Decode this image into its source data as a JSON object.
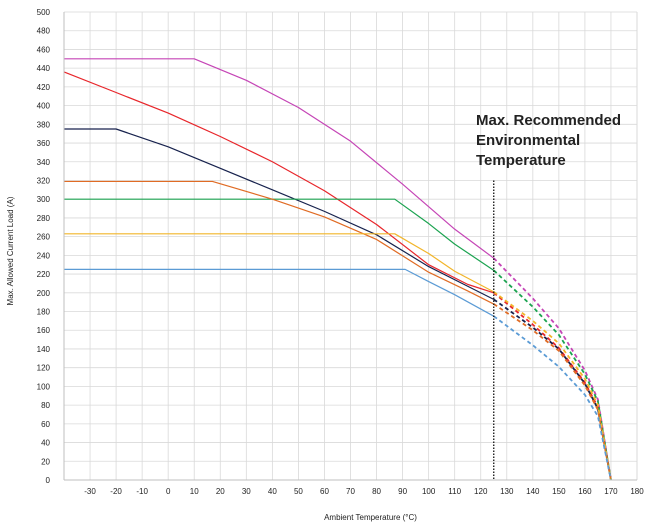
{
  "chart_data": {
    "type": "line",
    "title": "",
    "xlabel": "Ambient Temperature (°C)",
    "ylabel": "Max. Allowed Current Load (A)",
    "xlim": [
      -40,
      180
    ],
    "ylim": [
      0,
      500
    ],
    "xticks": [
      -30,
      -20,
      -10,
      0,
      10,
      20,
      30,
      40,
      50,
      60,
      70,
      80,
      90,
      100,
      110,
      120,
      130,
      140,
      150,
      160,
      170,
      180
    ],
    "yticks": [
      0,
      20,
      40,
      60,
      80,
      100,
      120,
      140,
      160,
      180,
      200,
      220,
      240,
      260,
      280,
      300,
      320,
      340,
      360,
      380,
      400,
      420,
      440,
      460,
      480,
      500
    ],
    "grid": true,
    "legend": "none",
    "solid_until_x": 125,
    "dashed_from_x": 125,
    "annotation": {
      "lines": [
        "Max. Recommended",
        "Environmental",
        "Temperature"
      ],
      "vline_x": 125,
      "vline_top_y": 320
    },
    "series": [
      {
        "color": "#c545b6",
        "values": [
          [
            -40,
            450
          ],
          [
            10,
            450
          ],
          [
            30,
            427
          ],
          [
            50,
            398
          ],
          [
            70,
            362
          ],
          [
            90,
            316
          ],
          [
            110,
            268
          ],
          [
            125,
            237
          ],
          [
            140,
            194
          ],
          [
            150,
            162
          ],
          [
            160,
            117
          ],
          [
            165,
            86
          ],
          [
            170,
            0
          ]
        ]
      },
      {
        "color": "#e8262b",
        "values": [
          [
            -40,
            436
          ],
          [
            -20,
            414
          ],
          [
            0,
            392
          ],
          [
            20,
            367
          ],
          [
            40,
            340
          ],
          [
            60,
            309
          ],
          [
            80,
            273
          ],
          [
            100,
            230
          ],
          [
            115,
            209
          ],
          [
            125,
            200
          ],
          [
            140,
            166
          ],
          [
            150,
            141
          ],
          [
            160,
            104
          ],
          [
            165,
            78
          ],
          [
            170,
            0
          ]
        ]
      },
      {
        "color": "#17224d",
        "values": [
          [
            -40,
            375
          ],
          [
            -20,
            375
          ],
          [
            0,
            356
          ],
          [
            20,
            333
          ],
          [
            40,
            310
          ],
          [
            60,
            287
          ],
          [
            80,
            262
          ],
          [
            100,
            228
          ],
          [
            115,
            207
          ],
          [
            125,
            193
          ],
          [
            140,
            163
          ],
          [
            150,
            140
          ],
          [
            160,
            103
          ],
          [
            165,
            76
          ],
          [
            170,
            0
          ]
        ]
      },
      {
        "color": "#1ba350",
        "values": [
          [
            -40,
            300
          ],
          [
            87,
            300
          ],
          [
            100,
            274
          ],
          [
            110,
            252
          ],
          [
            125,
            224
          ],
          [
            140,
            185
          ],
          [
            150,
            155
          ],
          [
            160,
            113
          ],
          [
            165,
            84
          ],
          [
            170,
            0
          ]
        ]
      },
      {
        "color": "#e06b24",
        "values": [
          [
            -40,
            319
          ],
          [
            17,
            319
          ],
          [
            40,
            300
          ],
          [
            60,
            281
          ],
          [
            80,
            257
          ],
          [
            100,
            222
          ],
          [
            115,
            202
          ],
          [
            125,
            188
          ],
          [
            140,
            160
          ],
          [
            150,
            138
          ],
          [
            160,
            101
          ],
          [
            165,
            75
          ],
          [
            170,
            0
          ]
        ]
      },
      {
        "color": "#f2b52a",
        "values": [
          [
            -40,
            263
          ],
          [
            87,
            263
          ],
          [
            100,
            242
          ],
          [
            110,
            223
          ],
          [
            125,
            201
          ],
          [
            140,
            170
          ],
          [
            150,
            146
          ],
          [
            160,
            108
          ],
          [
            165,
            80
          ],
          [
            170,
            0
          ]
        ]
      },
      {
        "color": "#5b9bd5",
        "values": [
          [
            -40,
            225
          ],
          [
            91,
            225
          ],
          [
            100,
            212
          ],
          [
            110,
            198
          ],
          [
            125,
            175
          ],
          [
            140,
            144
          ],
          [
            150,
            121
          ],
          [
            160,
            91
          ],
          [
            165,
            68
          ],
          [
            170,
            0
          ]
        ]
      }
    ]
  }
}
